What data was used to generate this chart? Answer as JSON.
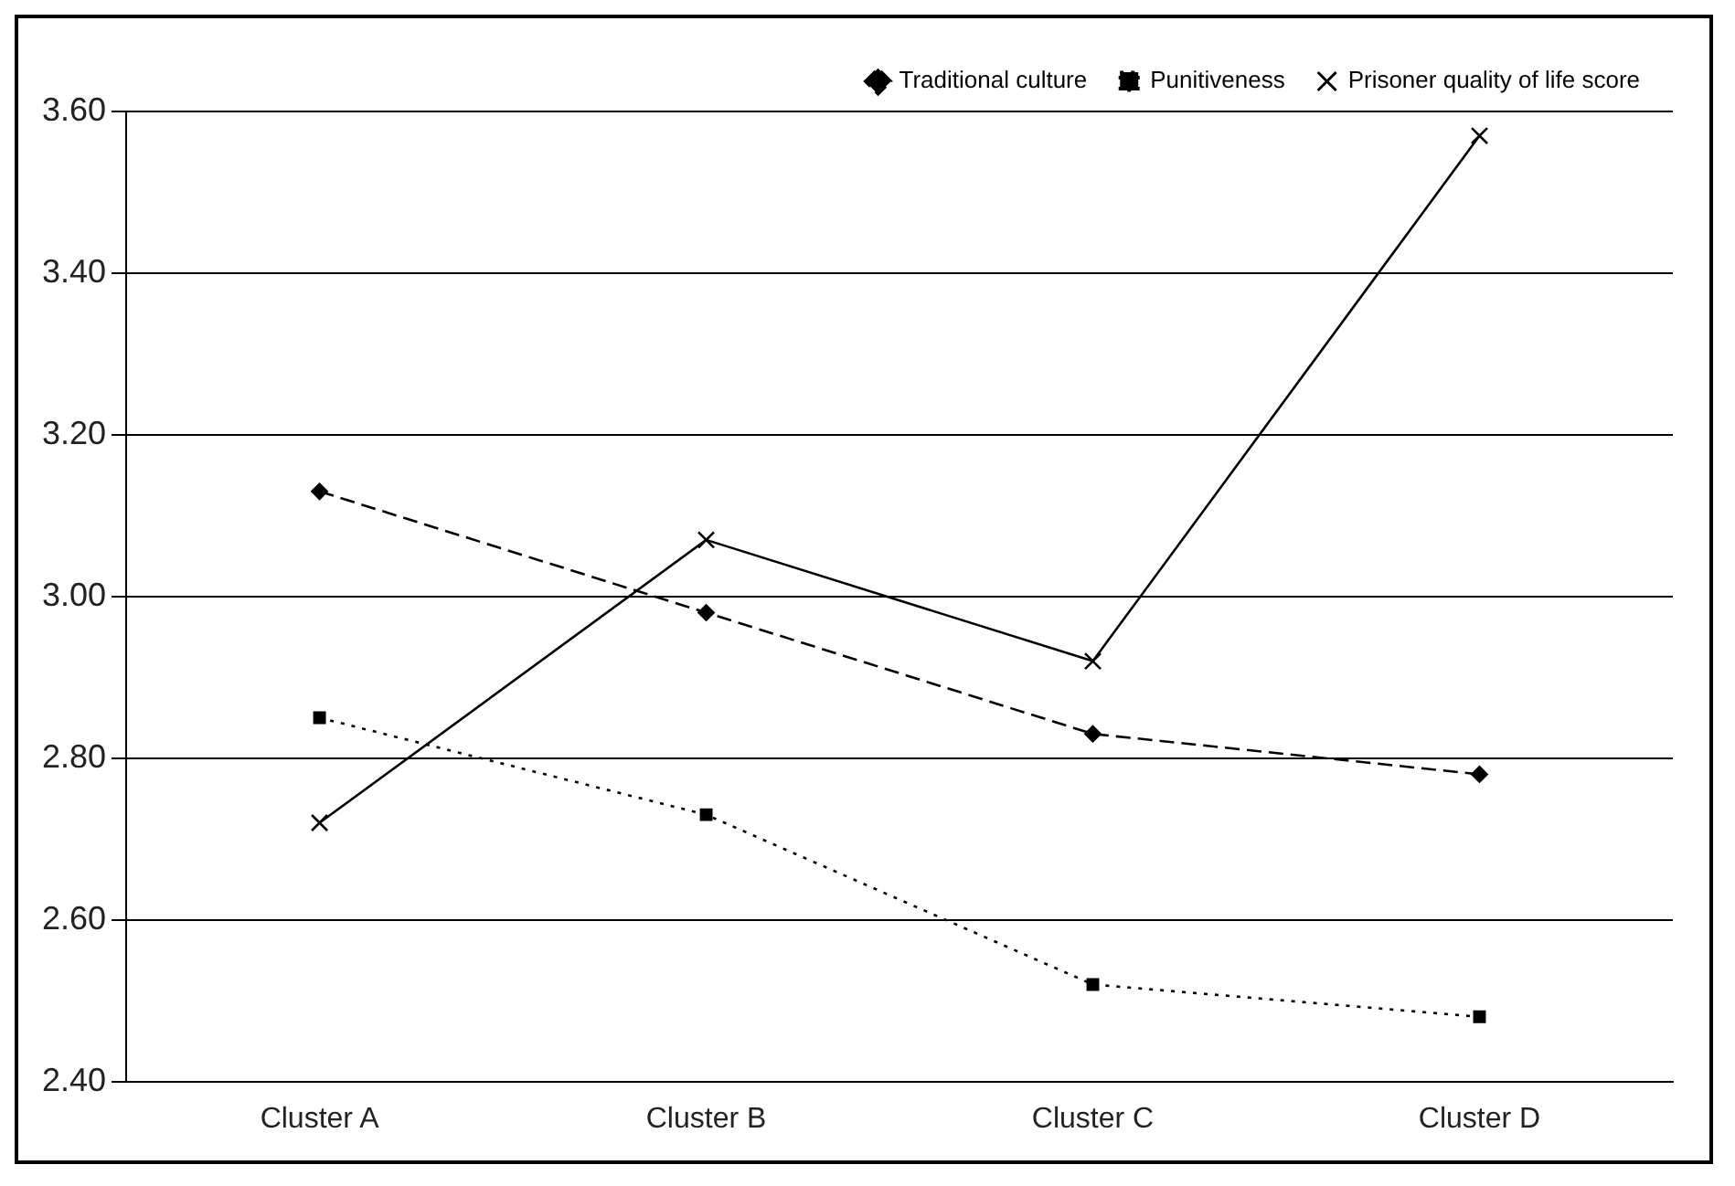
{
  "chart_data": {
    "type": "line",
    "categories": [
      "Cluster A",
      "Cluster B",
      "Cluster C",
      "Cluster D"
    ],
    "series": [
      {
        "name": "Traditional culture",
        "color": "#000000",
        "values": [
          3.13,
          2.98,
          2.83,
          2.78
        ],
        "marker": "diamond",
        "line_style": "dashed"
      },
      {
        "name": "Punitiveness",
        "color": "#000000",
        "values": [
          2.85,
          2.73,
          2.52,
          2.48
        ],
        "marker": "square",
        "line_style": "dotted"
      },
      {
        "name": "Prisoner quality of life score",
        "color": "#000000",
        "values": [
          2.72,
          3.07,
          2.92,
          3.57
        ],
        "marker": "cross",
        "line_style": "solid"
      }
    ],
    "ylim": [
      2.4,
      3.6
    ],
    "yticks": [
      {
        "value": 2.4,
        "label": "2.40"
      },
      {
        "value": 2.6,
        "label": "2.60"
      },
      {
        "value": 2.8,
        "label": "2.80"
      },
      {
        "value": 3.0,
        "label": "3.00"
      },
      {
        "value": 3.2,
        "label": "3.20"
      },
      {
        "value": 3.4,
        "label": "3.40"
      },
      {
        "value": 3.6,
        "label": "3.60"
      }
    ],
    "grid": "y",
    "legend": "top right"
  }
}
